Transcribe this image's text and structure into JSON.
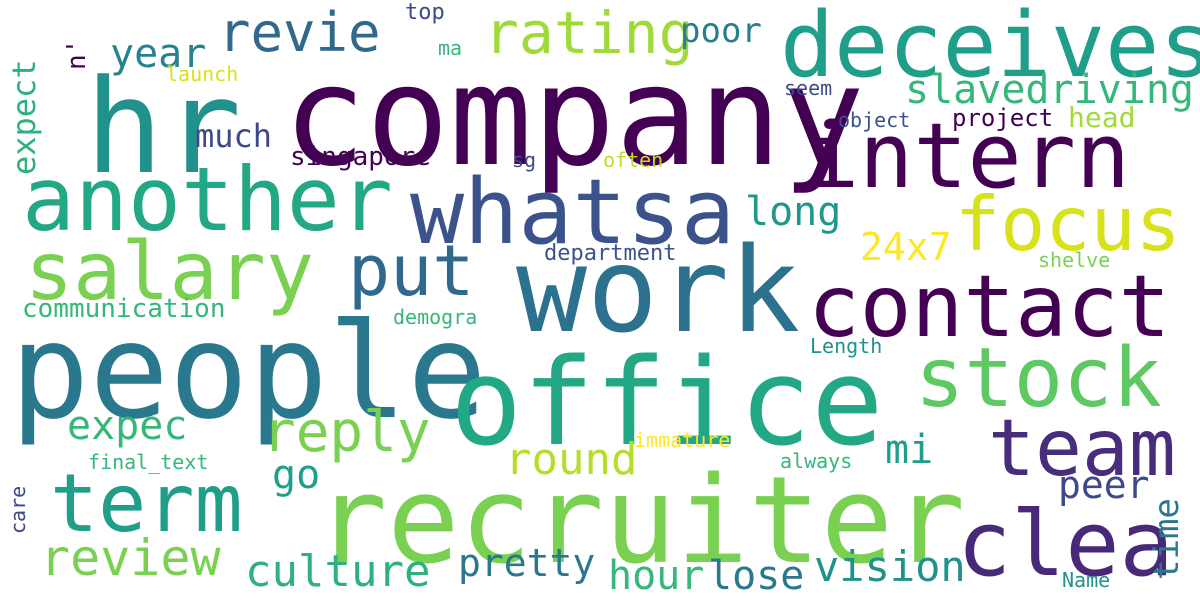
{
  "words": [
    {
      "text": "company",
      "color": "#440154"
    },
    {
      "text": "hr",
      "color": "#21918c"
    },
    {
      "text": "deceives",
      "color": "#1f9e89"
    },
    {
      "text": "intern",
      "color": "#440154"
    },
    {
      "text": "another",
      "color": "#22a884"
    },
    {
      "text": "whatsa",
      "color": "#3b528b"
    },
    {
      "text": "focus",
      "color": "#d8e219"
    },
    {
      "text": "salary",
      "color": "#7ad151"
    },
    {
      "text": "put",
      "color": "#31688e"
    },
    {
      "text": "work",
      "color": "#2c728e"
    },
    {
      "text": "contact",
      "color": "#440154"
    },
    {
      "text": "people",
      "color": "#2a788e"
    },
    {
      "text": "office",
      "color": "#22a884"
    },
    {
      "text": "stock",
      "color": "#5ec962"
    },
    {
      "text": "team",
      "color": "#472d7b"
    },
    {
      "text": "recruiter",
      "color": "#7ad151"
    },
    {
      "text": "term",
      "color": "#1f9e89"
    },
    {
      "text": "clea",
      "color": "#482878"
    },
    {
      "text": "rating",
      "color": "#a0da39"
    },
    {
      "text": "revie",
      "color": "#31688e"
    },
    {
      "text": "year",
      "color": "#26828e"
    },
    {
      "text": "poor",
      "color": "#277f8e"
    },
    {
      "text": "slavedriving",
      "color": "#35b779"
    },
    {
      "text": "expect",
      "color": "#2db27d"
    },
    {
      "text": "much",
      "color": "#3e4989"
    },
    {
      "text": "singapore",
      "color": "#440154"
    },
    {
      "text": "long",
      "color": "#1f988b"
    },
    {
      "text": "24x7",
      "color": "#fde725"
    },
    {
      "text": "reply",
      "color": "#7ad151"
    },
    {
      "text": "expec",
      "color": "#35b779"
    },
    {
      "text": "review",
      "color": "#7ad151"
    },
    {
      "text": "go",
      "color": "#1f9e89"
    },
    {
      "text": "round",
      "color": "#b5de2b"
    },
    {
      "text": "mi",
      "color": "#1f9e89"
    },
    {
      "text": "peer",
      "color": "#3e4989"
    },
    {
      "text": "culture",
      "color": "#2db27d"
    },
    {
      "text": "pretty",
      "color": "#2a788e"
    },
    {
      "text": "hour",
      "color": "#35b779"
    },
    {
      "text": "lose",
      "color": "#2a788e"
    },
    {
      "text": "vision",
      "color": "#21918c"
    },
    {
      "text": "time",
      "color": "#2a788e"
    },
    {
      "text": "communication",
      "color": "#35b779"
    },
    {
      "text": "top",
      "color": "#3e4989"
    },
    {
      "text": "ma",
      "color": "#35b779"
    },
    {
      "text": "launch",
      "color": "#d8e219"
    },
    {
      "text": "n'",
      "color": "#440154"
    },
    {
      "text": "seem",
      "color": "#3e4989"
    },
    {
      "text": "object",
      "color": "#3b528b"
    },
    {
      "text": "project",
      "color": "#440154"
    },
    {
      "text": "head",
      "color": "#a0da39"
    },
    {
      "text": "sg",
      "color": "#3e4989"
    },
    {
      "text": "often",
      "color": "#bddf26"
    },
    {
      "text": "department",
      "color": "#3b528b"
    },
    {
      "text": "shelve",
      "color": "#7ad151"
    },
    {
      "text": "demogra",
      "color": "#35b779"
    },
    {
      "text": "Length",
      "color": "#21918c"
    },
    {
      "text": "immature",
      "color": "#fde725"
    },
    {
      "text": "final_text",
      "color": "#35b779"
    },
    {
      "text": "always",
      "color": "#35b779"
    },
    {
      "text": "care",
      "color": "#3e4989"
    },
    {
      "text": "Name",
      "color": "#21918c"
    }
  ]
}
